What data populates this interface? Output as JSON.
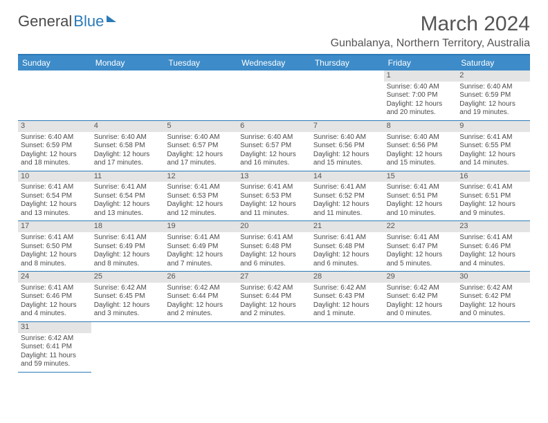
{
  "logo": {
    "part1": "General",
    "part2": "Blue"
  },
  "monthTitle": "March 2024",
  "location": "Gunbalanya, Northern Territory, Australia",
  "dayHeaders": [
    "Sunday",
    "Monday",
    "Tuesday",
    "Wednesday",
    "Thursday",
    "Friday",
    "Saturday"
  ],
  "headerBg": "#3d8bc8",
  "borderColor": "#2a7ab8",
  "dayBarBg": "#e4e4e4",
  "firstWeekday": 5,
  "days": [
    {
      "n": 1,
      "sr": "6:40 AM",
      "ss": "7:00 PM",
      "dl": "12 hours and 20 minutes."
    },
    {
      "n": 2,
      "sr": "6:40 AM",
      "ss": "6:59 PM",
      "dl": "12 hours and 19 minutes."
    },
    {
      "n": 3,
      "sr": "6:40 AM",
      "ss": "6:59 PM",
      "dl": "12 hours and 18 minutes."
    },
    {
      "n": 4,
      "sr": "6:40 AM",
      "ss": "6:58 PM",
      "dl": "12 hours and 17 minutes."
    },
    {
      "n": 5,
      "sr": "6:40 AM",
      "ss": "6:57 PM",
      "dl": "12 hours and 17 minutes."
    },
    {
      "n": 6,
      "sr": "6:40 AM",
      "ss": "6:57 PM",
      "dl": "12 hours and 16 minutes."
    },
    {
      "n": 7,
      "sr": "6:40 AM",
      "ss": "6:56 PM",
      "dl": "12 hours and 15 minutes."
    },
    {
      "n": 8,
      "sr": "6:40 AM",
      "ss": "6:56 PM",
      "dl": "12 hours and 15 minutes."
    },
    {
      "n": 9,
      "sr": "6:41 AM",
      "ss": "6:55 PM",
      "dl": "12 hours and 14 minutes."
    },
    {
      "n": 10,
      "sr": "6:41 AM",
      "ss": "6:54 PM",
      "dl": "12 hours and 13 minutes."
    },
    {
      "n": 11,
      "sr": "6:41 AM",
      "ss": "6:54 PM",
      "dl": "12 hours and 13 minutes."
    },
    {
      "n": 12,
      "sr": "6:41 AM",
      "ss": "6:53 PM",
      "dl": "12 hours and 12 minutes."
    },
    {
      "n": 13,
      "sr": "6:41 AM",
      "ss": "6:53 PM",
      "dl": "12 hours and 11 minutes."
    },
    {
      "n": 14,
      "sr": "6:41 AM",
      "ss": "6:52 PM",
      "dl": "12 hours and 11 minutes."
    },
    {
      "n": 15,
      "sr": "6:41 AM",
      "ss": "6:51 PM",
      "dl": "12 hours and 10 minutes."
    },
    {
      "n": 16,
      "sr": "6:41 AM",
      "ss": "6:51 PM",
      "dl": "12 hours and 9 minutes."
    },
    {
      "n": 17,
      "sr": "6:41 AM",
      "ss": "6:50 PM",
      "dl": "12 hours and 8 minutes."
    },
    {
      "n": 18,
      "sr": "6:41 AM",
      "ss": "6:49 PM",
      "dl": "12 hours and 8 minutes."
    },
    {
      "n": 19,
      "sr": "6:41 AM",
      "ss": "6:49 PM",
      "dl": "12 hours and 7 minutes."
    },
    {
      "n": 20,
      "sr": "6:41 AM",
      "ss": "6:48 PM",
      "dl": "12 hours and 6 minutes."
    },
    {
      "n": 21,
      "sr": "6:41 AM",
      "ss": "6:48 PM",
      "dl": "12 hours and 6 minutes."
    },
    {
      "n": 22,
      "sr": "6:41 AM",
      "ss": "6:47 PM",
      "dl": "12 hours and 5 minutes."
    },
    {
      "n": 23,
      "sr": "6:41 AM",
      "ss": "6:46 PM",
      "dl": "12 hours and 4 minutes."
    },
    {
      "n": 24,
      "sr": "6:41 AM",
      "ss": "6:46 PM",
      "dl": "12 hours and 4 minutes."
    },
    {
      "n": 25,
      "sr": "6:42 AM",
      "ss": "6:45 PM",
      "dl": "12 hours and 3 minutes."
    },
    {
      "n": 26,
      "sr": "6:42 AM",
      "ss": "6:44 PM",
      "dl": "12 hours and 2 minutes."
    },
    {
      "n": 27,
      "sr": "6:42 AM",
      "ss": "6:44 PM",
      "dl": "12 hours and 2 minutes."
    },
    {
      "n": 28,
      "sr": "6:42 AM",
      "ss": "6:43 PM",
      "dl": "12 hours and 1 minute."
    },
    {
      "n": 29,
      "sr": "6:42 AM",
      "ss": "6:42 PM",
      "dl": "12 hours and 0 minutes."
    },
    {
      "n": 30,
      "sr": "6:42 AM",
      "ss": "6:42 PM",
      "dl": "12 hours and 0 minutes."
    },
    {
      "n": 31,
      "sr": "6:42 AM",
      "ss": "6:41 PM",
      "dl": "11 hours and 59 minutes."
    }
  ],
  "labels": {
    "sunrise": "Sunrise:",
    "sunset": "Sunset:",
    "daylight": "Daylight:"
  }
}
